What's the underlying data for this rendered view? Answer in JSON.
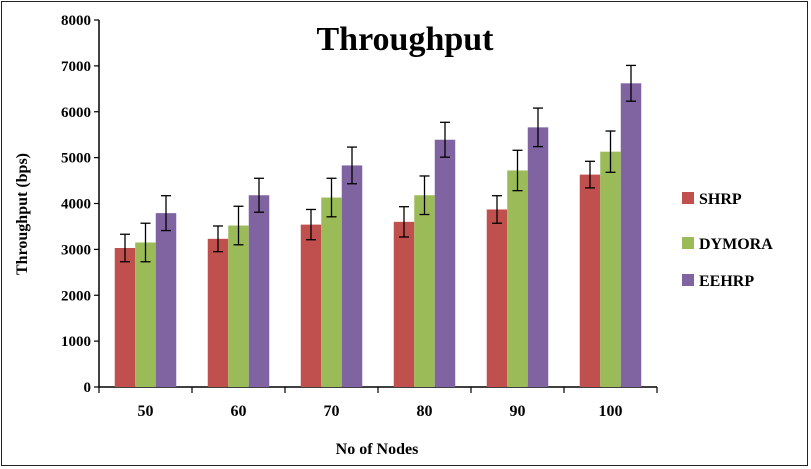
{
  "chart_data": {
    "type": "bar",
    "title": "Throughput",
    "xlabel": "No of Nodes",
    "ylabel": "Throughput  (bps)",
    "ylim": [
      0,
      8000
    ],
    "yticks": [
      0,
      1000,
      2000,
      3000,
      4000,
      5000,
      6000,
      7000,
      8000
    ],
    "categories": [
      "50",
      "60",
      "70",
      "80",
      "90",
      "100"
    ],
    "grid": false,
    "legend_position": "right",
    "series": [
      {
        "name": "SHRP",
        "color": "#c0504d",
        "values": [
          3030,
          3230,
          3540,
          3600,
          3870,
          4630
        ],
        "errors": [
          300,
          280,
          330,
          330,
          300,
          290
        ]
      },
      {
        "name": "DYMORA",
        "color": "#9bbb59",
        "values": [
          3150,
          3520,
          4130,
          4180,
          4720,
          5130
        ],
        "errors": [
          420,
          420,
          420,
          420,
          440,
          450
        ]
      },
      {
        "name": "EEHRP",
        "color": "#8064a2",
        "values": [
          3790,
          4180,
          4830,
          5390,
          5660,
          6620
        ],
        "errors": [
          380,
          370,
          400,
          380,
          420,
          390
        ]
      }
    ]
  }
}
